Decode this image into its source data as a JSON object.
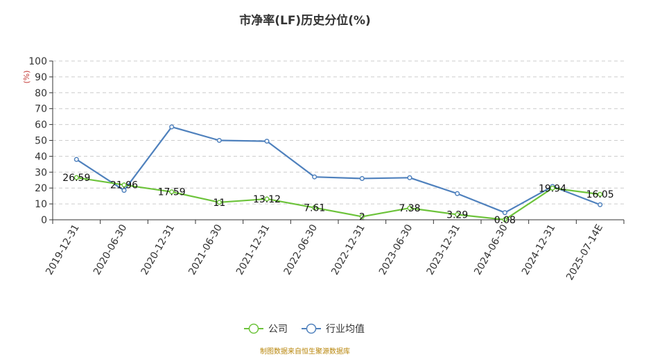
{
  "chart_data": {
    "type": "line",
    "title": "市净率(LF)历史分位(%)",
    "ylabel": "(%)",
    "xlabel": "",
    "ylim": [
      0,
      100
    ],
    "yticks": [
      0,
      10,
      20,
      30,
      40,
      50,
      60,
      70,
      80,
      90,
      100
    ],
    "grid": true,
    "legend_position": "bottom-center",
    "categories": [
      "2019-12-31",
      "2020-06-30",
      "2020-12-31",
      "2021-06-30",
      "2021-12-31",
      "2022-06-30",
      "2022-12-31",
      "2023-06-30",
      "2023-12-31",
      "2024-06-30",
      "2024-12-31",
      "2025-07-14E"
    ],
    "series": [
      {
        "name": "公司",
        "color": "#6cc33a",
        "show_labels": true,
        "values": [
          26.59,
          21.96,
          17.59,
          11,
          13.12,
          7.61,
          2,
          7.38,
          3.29,
          0.08,
          19.94,
          16.05
        ],
        "labels": [
          "26.59",
          "21.96",
          "17.59",
          "11",
          "13.12",
          "7.61",
          "2",
          "7.38",
          "3.29",
          "0.08",
          "19.94",
          "16.05"
        ]
      },
      {
        "name": "行业均值",
        "color": "#4f81bd",
        "show_labels": false,
        "values": [
          38,
          18.5,
          58.5,
          50,
          49.5,
          27,
          26,
          26.5,
          16.5,
          4.5,
          21,
          9.5
        ]
      }
    ]
  },
  "footer": {
    "source": "制图数据来自恒生聚源数据库"
  }
}
